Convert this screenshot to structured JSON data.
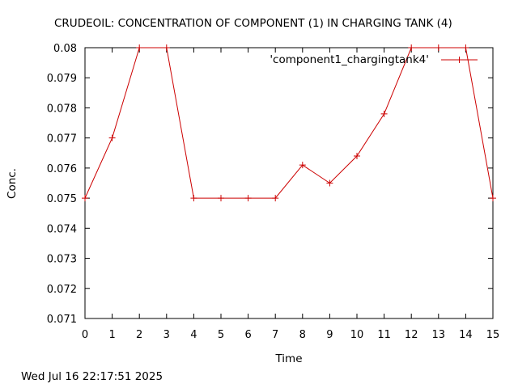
{
  "footer": {
    "timestamp": "Wed Jul 16 22:17:51 2025"
  },
  "chart_data": {
    "type": "line",
    "title": "CRUDEOIL:   CONCENTRATION OF COMPONENT (1) IN CHARGING TANK (4)",
    "xlabel": "Time",
    "ylabel": "Conc.",
    "xlim": [
      0,
      15
    ],
    "ylim": [
      0.071,
      0.08
    ],
    "xticks": [
      "0",
      "1",
      "2",
      "3",
      "4",
      "5",
      "6",
      "7",
      "8",
      "9",
      "10",
      "11",
      "12",
      "13",
      "14",
      "15"
    ],
    "yticks": [
      "0.071",
      "0.072",
      "0.073",
      "0.074",
      "0.075",
      "0.076",
      "0.077",
      "0.078",
      "0.079",
      "0.08"
    ],
    "grid": false,
    "legend_position": "top-right",
    "series": [
      {
        "name": "'component1_chargingtank4'",
        "color": "#cc0000",
        "marker": "plus",
        "x": [
          0,
          1,
          2,
          3,
          4,
          5,
          6,
          7,
          8,
          9,
          10,
          11,
          12,
          13,
          14,
          15
        ],
        "y": [
          0.075,
          0.077,
          0.08,
          0.08,
          0.075,
          0.075,
          0.075,
          0.075,
          0.0761,
          0.0755,
          0.0764,
          0.0778,
          0.08,
          0.08,
          0.08,
          0.075
        ]
      }
    ]
  }
}
